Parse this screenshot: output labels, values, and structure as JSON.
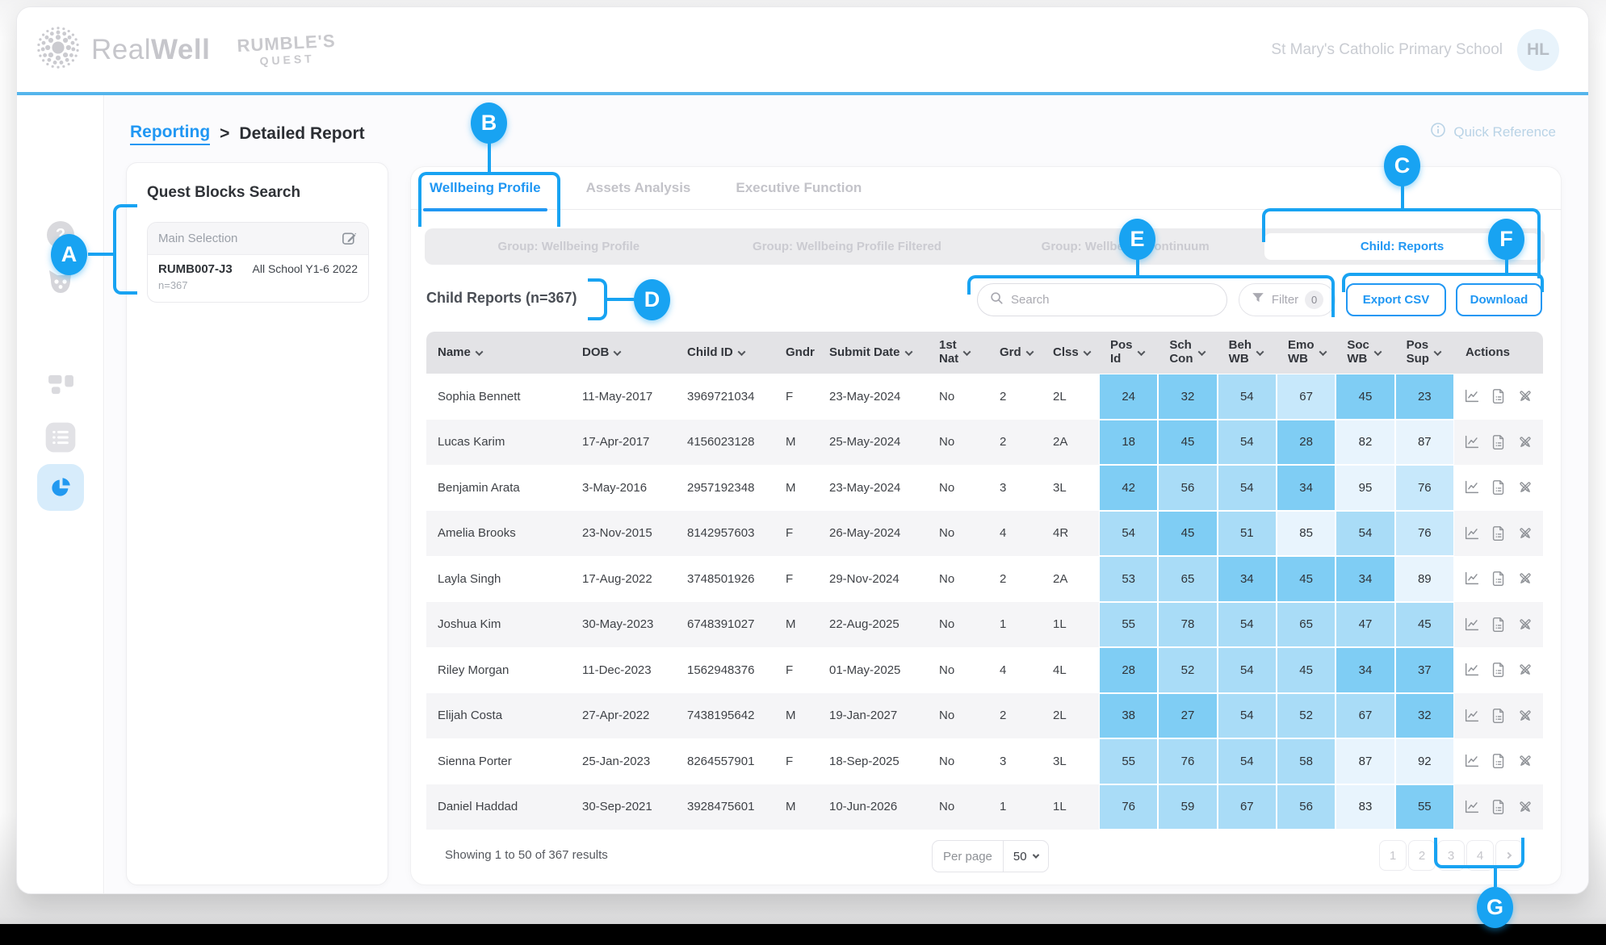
{
  "app": {
    "header": {
      "brand_primary_light": "Real",
      "brand_primary_bold": "Well",
      "brand_secondary_line1": "RUMBLE'S",
      "brand_secondary_line2": "QUEST",
      "school_name": "St Mary's Catholic Primary School",
      "avatar_initials": "HL"
    },
    "breadcrumb": {
      "link": "Reporting",
      "separator": ">",
      "current": "Detailed Report"
    },
    "quick_reference_label": "Quick Reference"
  },
  "quest_panel": {
    "title": "Quest Blocks Search",
    "selection_label": "Main Selection",
    "code": "RUMB007-J3",
    "cohort": "All School Y1-6 2022",
    "count": "n=367"
  },
  "tabs": [
    {
      "label": "Wellbeing Profile",
      "active": true
    },
    {
      "label": "Assets Analysis",
      "active": false
    },
    {
      "label": "Executive Function",
      "active": false
    }
  ],
  "subtabs": [
    {
      "label": "Group: Wellbeing Profile",
      "active": false
    },
    {
      "label": "Group: Wellbeing Profile Filtered",
      "active": false
    },
    {
      "label": "Group: Wellbeing Continuum",
      "active": false
    },
    {
      "label": "Child: Reports",
      "active": true
    }
  ],
  "toolbar": {
    "heading": "Child Reports (n=367)",
    "search_placeholder": "Search",
    "filter_label": "Filter",
    "filter_count": "0",
    "export_csv_label": "Export CSV",
    "download_label": "Download"
  },
  "table": {
    "columns": [
      {
        "label": "Name",
        "sortable": true
      },
      {
        "label": "DOB",
        "sortable": true
      },
      {
        "label": "Child ID",
        "sortable": true
      },
      {
        "label": "Gndr",
        "sortable": false
      },
      {
        "label": "Submit Date",
        "sortable": true
      },
      {
        "label": "1st Nat",
        "lines": [
          "1st",
          "Nat"
        ],
        "sortable": true
      },
      {
        "label": "Grd",
        "sortable": true
      },
      {
        "label": "Clss",
        "sortable": true
      },
      {
        "label": "Pos Id",
        "lines": [
          "Pos",
          "Id"
        ],
        "sortable": true
      },
      {
        "label": "Sch Con",
        "lines": [
          "Sch",
          "Con"
        ],
        "sortable": true
      },
      {
        "label": "Beh WB",
        "lines": [
          "Beh",
          "WB"
        ],
        "sortable": true
      },
      {
        "label": "Emo WB",
        "lines": [
          "Emo",
          "WB"
        ],
        "sortable": true
      },
      {
        "label": "Soc WB",
        "lines": [
          "Soc",
          "WB"
        ],
        "sortable": true
      },
      {
        "label": "Pos Sup",
        "lines": [
          "Pos",
          "Sup"
        ],
        "sortable": true
      },
      {
        "label": "Actions",
        "sortable": false
      }
    ],
    "rows": [
      {
        "name": "Sophia Bennett",
        "dob": "11-May-2017",
        "child_id": "3969721034",
        "gndr": "F",
        "submit_date": "23-May-2024",
        "first_nat": "No",
        "grd": "2",
        "clss": "2L",
        "scores": [
          24,
          32,
          54,
          67,
          45,
          23
        ],
        "score_levels": [
          3,
          3,
          2,
          1,
          3,
          3
        ]
      },
      {
        "name": "Lucas Karim",
        "dob": "17-Apr-2017",
        "child_id": "4156023128",
        "gndr": "M",
        "submit_date": "25-May-2024",
        "first_nat": "No",
        "grd": "2",
        "clss": "2A",
        "scores": [
          18,
          45,
          54,
          28,
          82,
          87
        ],
        "score_levels": [
          3,
          3,
          2,
          3,
          0,
          0
        ]
      },
      {
        "name": "Benjamin Arata",
        "dob": "3-May-2016",
        "child_id": "2957192348",
        "gndr": "M",
        "submit_date": "23-May-2024",
        "first_nat": "No",
        "grd": "3",
        "clss": "3L",
        "scores": [
          42,
          56,
          54,
          34,
          95,
          76
        ],
        "score_levels": [
          3,
          2,
          2,
          3,
          0,
          1
        ]
      },
      {
        "name": "Amelia Brooks",
        "dob": "23-Nov-2015",
        "child_id": "8142957603",
        "gndr": "F",
        "submit_date": "26-May-2024",
        "first_nat": "No",
        "grd": "4",
        "clss": "4R",
        "scores": [
          54,
          45,
          51,
          85,
          54,
          76
        ],
        "score_levels": [
          2,
          3,
          2,
          0,
          2,
          1
        ]
      },
      {
        "name": "Layla Singh",
        "dob": "17-Aug-2022",
        "child_id": "3748501926",
        "gndr": "F",
        "submit_date": "29-Nov-2024",
        "first_nat": "No",
        "grd": "2",
        "clss": "2A",
        "scores": [
          53,
          65,
          34,
          45,
          34,
          89
        ],
        "score_levels": [
          2,
          2,
          3,
          3,
          3,
          0
        ]
      },
      {
        "name": "Joshua Kim",
        "dob": "30-May-2023",
        "child_id": "6748391027",
        "gndr": "M",
        "submit_date": "22-Aug-2025",
        "first_nat": "No",
        "grd": "1",
        "clss": "1L",
        "scores": [
          55,
          78,
          54,
          65,
          47,
          45
        ],
        "score_levels": [
          2,
          2,
          2,
          2,
          2,
          2
        ]
      },
      {
        "name": "Riley Morgan",
        "dob": "11-Dec-2023",
        "child_id": "1562948376",
        "gndr": "F",
        "submit_date": "01-May-2025",
        "first_nat": "No",
        "grd": "4",
        "clss": "4L",
        "scores": [
          28,
          52,
          54,
          45,
          34,
          37
        ],
        "score_levels": [
          3,
          2,
          2,
          2,
          3,
          3
        ]
      },
      {
        "name": "Elijah Costa",
        "dob": "27-Apr-2022",
        "child_id": "7438195642",
        "gndr": "M",
        "submit_date": "19-Jan-2027",
        "first_nat": "No",
        "grd": "2",
        "clss": "2L",
        "scores": [
          38,
          27,
          54,
          52,
          67,
          32
        ],
        "score_levels": [
          3,
          3,
          2,
          2,
          2,
          3
        ]
      },
      {
        "name": "Sienna Porter",
        "dob": "25-Jan-2023",
        "child_id": "8264557901",
        "gndr": "F",
        "submit_date": "18-Sep-2025",
        "first_nat": "No",
        "grd": "3",
        "clss": "3L",
        "scores": [
          55,
          76,
          54,
          58,
          87,
          92
        ],
        "score_levels": [
          2,
          2,
          2,
          2,
          0,
          0
        ]
      },
      {
        "name": "Daniel Haddad",
        "dob": "30-Sep-2021",
        "child_id": "3928475601",
        "gndr": "M",
        "submit_date": "10-Jun-2026",
        "first_nat": "No",
        "grd": "1",
        "clss": "1L",
        "scores": [
          76,
          59,
          67,
          56,
          83,
          55
        ],
        "score_levels": [
          2,
          2,
          2,
          2,
          0,
          3
        ]
      }
    ],
    "action_icons": [
      "trend-chart",
      "report-file",
      "compare-pencils"
    ]
  },
  "footer": {
    "showing_text": "Showing 1 to 50 of 367 results",
    "per_page_label": "Per page",
    "per_page_value": "50",
    "pages": [
      "1",
      "2",
      "3",
      "4"
    ]
  },
  "annotations": {
    "a": {
      "letter": "A"
    },
    "b": {
      "letter": "B"
    },
    "c": {
      "letter": "C"
    },
    "d": {
      "letter": "D"
    },
    "e": {
      "letter": "E"
    },
    "f": {
      "letter": "F"
    },
    "g": {
      "letter": "G"
    }
  },
  "colors": {
    "annotation_blue": "#18a3f2",
    "accent_blue": "#2097f3",
    "score_pale": "#e8f4fd",
    "score_light": "#c7e8fb",
    "score_medium": "#a9dcf7",
    "score_strong": "#7fcdf4"
  }
}
